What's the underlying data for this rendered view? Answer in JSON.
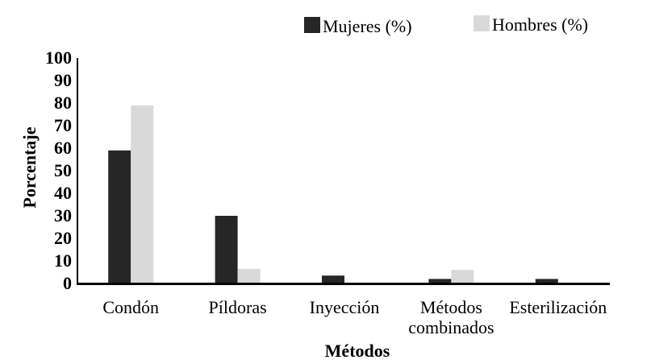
{
  "chart_data": {
    "type": "bar",
    "title": "",
    "xlabel": "Métodos",
    "ylabel": "Porcentaje",
    "ylim": [
      0,
      100
    ],
    "yticks": [
      0,
      10,
      20,
      30,
      40,
      50,
      60,
      70,
      80,
      90,
      100
    ],
    "categories": [
      [
        "Condón"
      ],
      [
        "Píldoras"
      ],
      [
        "Inyección"
      ],
      [
        "Métodos",
        "combinados"
      ],
      [
        "Esterilización"
      ]
    ],
    "series": [
      {
        "name": "Mujeres (%)",
        "color": "#262626",
        "values": [
          59,
          30,
          3.5,
          2,
          2
        ]
      },
      {
        "name": "Hombres (%)",
        "color": "#d9d9d9",
        "values": [
          79,
          6.5,
          0,
          6,
          0
        ]
      }
    ],
    "grid": false,
    "legend": "top-right"
  }
}
